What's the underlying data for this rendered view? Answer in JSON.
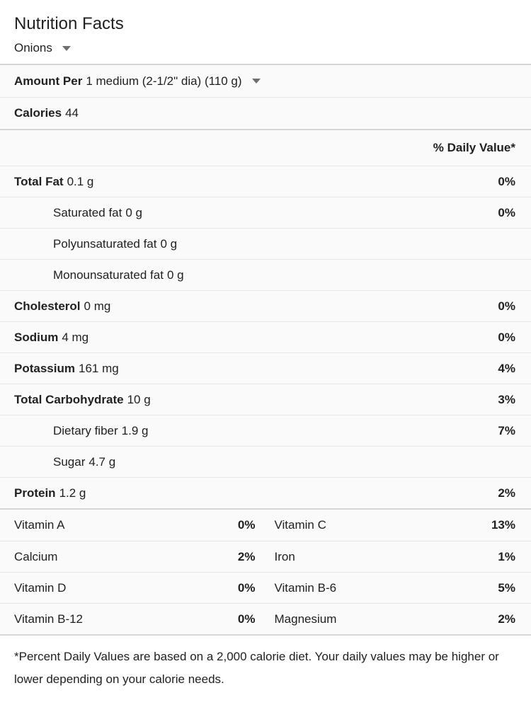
{
  "header": {
    "title": "Nutrition Facts",
    "food": "Onions"
  },
  "serving": {
    "label": "Amount Per",
    "value": "1 medium (2-1/2\" dia) (110 g)"
  },
  "calories": {
    "label": "Calories",
    "value": "44"
  },
  "daily_value_header": "% Daily Value*",
  "nutrients": [
    {
      "label": "Total Fat",
      "amount": "0.1 g",
      "dv": "0%"
    },
    {
      "label": "Saturated fat",
      "amount": "0 g",
      "dv": "0%"
    },
    {
      "label": "Polyunsaturated fat",
      "amount": "0 g",
      "dv": ""
    },
    {
      "label": "Monounsaturated fat",
      "amount": "0 g",
      "dv": ""
    },
    {
      "label": "Cholesterol",
      "amount": "0 mg",
      "dv": "0%"
    },
    {
      "label": "Sodium",
      "amount": "4 mg",
      "dv": "0%"
    },
    {
      "label": "Potassium",
      "amount": "161 mg",
      "dv": "4%"
    },
    {
      "label": "Total Carbohydrate",
      "amount": "10 g",
      "dv": "3%"
    },
    {
      "label": "Dietary fiber",
      "amount": "1.9 g",
      "dv": "7%"
    },
    {
      "label": "Sugar",
      "amount": "4.7 g",
      "dv": ""
    },
    {
      "label": "Protein",
      "amount": "1.2 g",
      "dv": "2%"
    }
  ],
  "micronutrients": [
    {
      "left": {
        "label": "Vitamin A",
        "dv": "0%"
      },
      "right": {
        "label": "Vitamin C",
        "dv": "13%"
      }
    },
    {
      "left": {
        "label": "Calcium",
        "dv": "2%"
      },
      "right": {
        "label": "Iron",
        "dv": "1%"
      }
    },
    {
      "left": {
        "label": "Vitamin D",
        "dv": "0%"
      },
      "right": {
        "label": "Vitamin B-6",
        "dv": "5%"
      }
    },
    {
      "left": {
        "label": "Vitamin B-12",
        "dv": "0%"
      },
      "right": {
        "label": "Magnesium",
        "dv": "2%"
      }
    }
  ],
  "footnote": "*Percent Daily Values are based on a 2,000 calorie diet. Your daily values may be higher or lower depending on your calorie needs.",
  "icons": {
    "dropdown": "caret-down"
  },
  "colors": {
    "text": "#212121",
    "row_background": "#fafafa",
    "row_divider": "#e7e7e7",
    "section_divider": "#d6d6d6",
    "caret": "#6f6f6f"
  }
}
